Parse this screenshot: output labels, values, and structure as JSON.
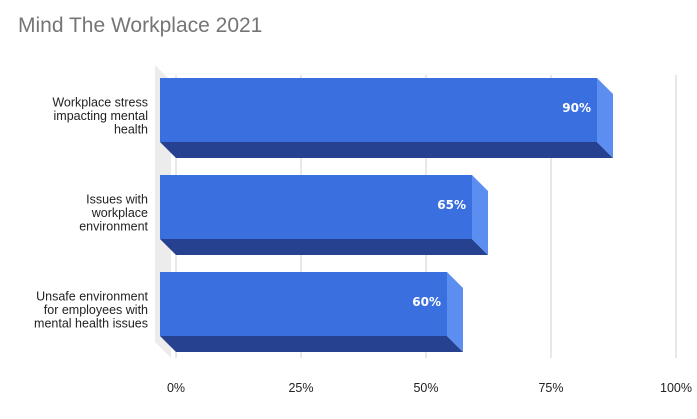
{
  "chart_data": {
    "type": "bar",
    "orientation": "horizontal",
    "style": "3d",
    "title": "Mind The Workplace 2021",
    "categories": [
      [
        "Workplace stress",
        "impacting mental",
        "health"
      ],
      [
        "Issues with",
        "workplace",
        "environment"
      ],
      [
        "Unsafe environment",
        "for employees with",
        "mental health issues"
      ]
    ],
    "values": [
      0.9,
      0.65,
      0.6
    ],
    "data_labels": [
      "90%",
      "65%",
      "60%"
    ],
    "xlim": [
      0,
      1
    ],
    "xticks": [
      0,
      0.25,
      0.5,
      0.75,
      1
    ],
    "xtick_labels": [
      "0%",
      "25%",
      "50%",
      "75%",
      "100%"
    ],
    "grid": true,
    "legend": "none",
    "colors": {
      "bar_face": "#3a6fe0",
      "bar_side": "#5b8ef0",
      "bar_bottom": "#25418f",
      "grid": "#d0d0d0",
      "floor": "#ececec"
    }
  }
}
